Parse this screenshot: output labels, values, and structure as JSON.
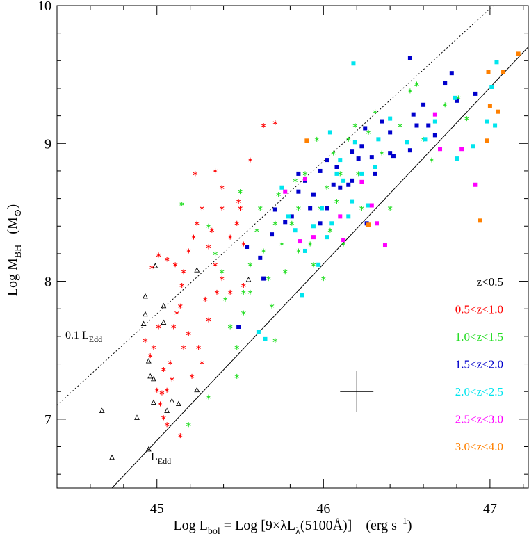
{
  "chart_data": {
    "type": "scatter",
    "xlim": [
      44.4,
      47.23
    ],
    "ylim": [
      6.5,
      10
    ],
    "xticks": [
      45,
      46,
      47
    ],
    "yticks": [
      7,
      8,
      9,
      10
    ],
    "xticks_minor": [
      44.4,
      44.6,
      44.8,
      45.2,
      45.4,
      45.6,
      45.8,
      46.2,
      46.4,
      46.6,
      46.8,
      47.2
    ],
    "yticks_minor": [
      6.6,
      6.8,
      7.2,
      7.4,
      7.6,
      7.8,
      8.2,
      8.4,
      8.6,
      8.8,
      9.2,
      9.4,
      9.6,
      9.8
    ],
    "xlabel": [
      {
        "text": "Log L"
      },
      {
        "text": "bol",
        "shift": "sub"
      },
      {
        "text": " = Log [9×λL"
      },
      {
        "text": "λ",
        "shift": "sub"
      },
      {
        "text": "(5100Å)]    (erg s"
      },
      {
        "text": "−1",
        "shift": "super"
      },
      {
        "text": ")"
      }
    ],
    "ylabel": [
      {
        "text": "Log M"
      },
      {
        "text": "BH",
        "shift": "sub"
      },
      {
        "text": "   (M"
      },
      {
        "text": "⊙",
        "shift": "sub"
      },
      {
        "text": ")"
      }
    ],
    "lines": [
      {
        "style": "solid",
        "x": [
          44.73,
          47.23
        ],
        "y": [
          6.5,
          9.7
        ]
      },
      {
        "style": "dotted",
        "x": [
          44.4,
          47.02
        ],
        "y": [
          7.1,
          10
        ]
      }
    ],
    "annotations": [
      {
        "text": "0.1 L",
        "sub": "Edd"
      },
      {
        "text": "L",
        "sub": "Edd"
      }
    ],
    "error_bar": {
      "x": 46.2,
      "y": 7.2,
      "xerr": 0.1,
      "yerr": 0.15
    },
    "series": [
      {
        "name": "z<0.5",
        "color": "#000000",
        "marker": "triangle",
        "x": [
          44.67,
          44.73,
          44.88,
          44.93,
          44.92,
          44.93,
          44.95,
          44.96,
          44.98,
          44.98,
          44.99,
          45.04,
          45.04,
          44.95,
          45.06,
          45.09,
          45.13,
          45.24,
          45.24,
          45.55
        ],
        "y": [
          7.06,
          6.72,
          7.01,
          7.89,
          7.69,
          7.76,
          7.42,
          7.31,
          7.29,
          7.12,
          8.11,
          7.7,
          7.82,
          6.78,
          7.06,
          7.13,
          7.11,
          7.21,
          8.08,
          8.01
        ]
      },
      {
        "name": "0.5<z<1.0",
        "color": "#ff0000",
        "marker": "star",
        "x": [
          44.97,
          45.01,
          45.06,
          45.11,
          44.93,
          44.96,
          44.98,
          45.0,
          45.03,
          45.02,
          45.06,
          45.04,
          45.08,
          45.01,
          45.1,
          45.14,
          45.15,
          45.16,
          45.19,
          45.22,
          45.24,
          45.27,
          45.31,
          45.33,
          45.35,
          45.36,
          45.39,
          45.44,
          45.48,
          45.5,
          45.52,
          45.29,
          45.31,
          45.19,
          45.21,
          45.16,
          45.12,
          45.25,
          45.27,
          45.09,
          45.06,
          45.14,
          45.04,
          45.23,
          45.35,
          45.56,
          45.64,
          45.71,
          45.52,
          45.44,
          45.39,
          45.39,
          45.49
        ],
        "y": [
          8.1,
          8.19,
          8.16,
          8.12,
          7.57,
          7.46,
          7.52,
          7.21,
          7.19,
          7.11,
          7.21,
          7.36,
          7.41,
          7.67,
          7.67,
          7.82,
          7.97,
          8.07,
          8.22,
          8.32,
          8.42,
          8.53,
          8.25,
          8.37,
          8.12,
          7.92,
          8.02,
          8.32,
          8.42,
          8.53,
          8.27,
          7.87,
          7.72,
          7.62,
          7.31,
          7.52,
          7.77,
          7.52,
          7.41,
          7.29,
          6.96,
          6.88,
          7.01,
          8.78,
          8.8,
          8.88,
          9.13,
          9.15,
          7.97,
          7.92,
          8.53,
          8.68,
          8.58
        ]
      },
      {
        "name": "1.0<z<1.5",
        "color": "#22dd22",
        "marker": "star",
        "x": [
          45.15,
          45.19,
          45.31,
          45.31,
          45.35,
          45.39,
          45.41,
          45.44,
          45.48,
          45.48,
          45.52,
          45.56,
          45.56,
          45.6,
          45.62,
          45.64,
          45.67,
          45.69,
          45.71,
          45.73,
          45.75,
          45.77,
          45.81,
          45.83,
          45.85,
          45.89,
          45.92,
          45.94,
          45.96,
          45.98,
          46.02,
          46.04,
          46.06,
          46.08,
          46.1,
          46.12,
          46.15,
          46.19,
          46.21,
          46.23,
          46.27,
          46.31,
          46.35,
          46.4,
          46.46,
          46.52,
          46.56,
          46.6,
          46.65,
          46.73,
          46.81,
          46.86,
          46.0,
          45.85,
          45.5,
          45.71,
          45.52
        ],
        "y": [
          8.56,
          6.96,
          7.16,
          8.4,
          8.2,
          8.07,
          7.87,
          7.67,
          7.31,
          7.52,
          7.77,
          7.92,
          8.12,
          8.37,
          8.53,
          8.22,
          8.02,
          7.82,
          8.42,
          8.63,
          8.27,
          8.07,
          8.42,
          8.73,
          8.53,
          8.78,
          8.27,
          8.12,
          9.03,
          8.53,
          8.68,
          8.37,
          8.93,
          8.58,
          8.78,
          8.27,
          9.03,
          9.13,
          8.78,
          8.53,
          9.08,
          9.23,
          8.93,
          8.53,
          9.13,
          9.38,
          9.43,
          9.03,
          8.88,
          9.28,
          9.33,
          9.18,
          8.02,
          8.22,
          8.65,
          7.57,
          7.92
        ]
      },
      {
        "name": "1.5<z<2.0",
        "color": "#0000cc",
        "marker": "square",
        "x": [
          45.49,
          45.54,
          45.62,
          45.64,
          45.69,
          45.71,
          45.77,
          45.81,
          45.85,
          45.85,
          45.89,
          45.92,
          45.94,
          45.98,
          45.98,
          46.02,
          46.06,
          46.08,
          46.1,
          46.15,
          46.17,
          46.21,
          46.23,
          46.25,
          46.26,
          46.29,
          46.31,
          46.35,
          46.4,
          46.42,
          46.52,
          46.54,
          46.56,
          46.6,
          46.63,
          46.67,
          46.73,
          46.77,
          46.8,
          46.91,
          46.52,
          46.4,
          46.17,
          46.02
        ],
        "y": [
          7.67,
          8.25,
          8.17,
          8.02,
          8.34,
          8.52,
          8.43,
          8.47,
          8.65,
          8.78,
          8.73,
          8.53,
          8.63,
          8.8,
          8.42,
          8.53,
          8.7,
          8.83,
          8.68,
          8.7,
          8.94,
          8.89,
          8.98,
          9.11,
          8.42,
          8.9,
          8.78,
          9.16,
          9.08,
          8.91,
          8.95,
          9.21,
          9.13,
          9.28,
          9.13,
          9.06,
          9.44,
          9.51,
          9.31,
          9.36,
          9.62,
          8.93,
          8.73,
          8.88
        ]
      },
      {
        "name": "2.0<z<2.5",
        "color": "#00e5ee",
        "marker": "square",
        "x": [
          45.61,
          45.65,
          45.75,
          45.79,
          45.83,
          45.87,
          45.89,
          45.94,
          45.97,
          45.99,
          46.02,
          46.05,
          46.08,
          46.1,
          46.12,
          46.15,
          46.17,
          46.19,
          46.23,
          46.27,
          46.31,
          46.33,
          46.4,
          46.5,
          46.61,
          46.67,
          46.79,
          46.8,
          46.9,
          46.98,
          47.01,
          47.03,
          47.04,
          46.18,
          46.04
        ],
        "y": [
          7.63,
          7.58,
          8.68,
          8.47,
          8.37,
          7.9,
          8.22,
          8.4,
          8.12,
          8.53,
          8.32,
          8.42,
          8.78,
          8.88,
          8.73,
          8.47,
          8.58,
          9.01,
          8.78,
          8.55,
          8.83,
          9.03,
          9.18,
          9.01,
          9.03,
          9.16,
          9.33,
          8.89,
          8.98,
          9.16,
          9.41,
          9.13,
          9.59,
          9.58,
          9.08
        ]
      },
      {
        "name": "2.5<z<3.0",
        "color": "#ff00ff",
        "marker": "square",
        "x": [
          45.77,
          45.86,
          45.89,
          45.94,
          46.1,
          46.12,
          46.23,
          46.29,
          46.32,
          46.37,
          46.67,
          46.7,
          46.83,
          46.91
        ],
        "y": [
          8.65,
          8.29,
          8.74,
          8.32,
          8.47,
          8.3,
          8.72,
          8.55,
          8.42,
          8.26,
          9.21,
          8.96,
          8.96,
          8.7
        ]
      },
      {
        "name": "3.0<z<4.0",
        "color": "#ff8000",
        "marker": "square",
        "x": [
          45.9,
          46.27,
          46.94,
          46.98,
          46.99,
          47.0,
          47.05,
          47.08,
          47.17
        ],
        "y": [
          9.02,
          8.41,
          8.44,
          9.02,
          9.52,
          9.27,
          9.23,
          9.52,
          9.65
        ]
      }
    ]
  }
}
